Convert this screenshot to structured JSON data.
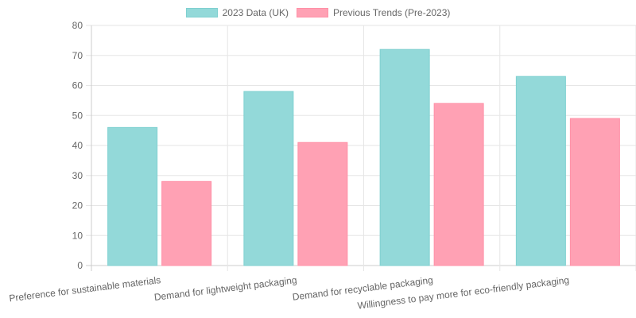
{
  "chart_data": {
    "type": "bar",
    "categories": [
      "Preference for sustainable materials",
      "Demand for lightweight packaging",
      "Demand for recyclable packaging",
      "Willingness to pay more for eco-friendly packaging"
    ],
    "series": [
      {
        "name": "2023 Data (UK)",
        "values": [
          46,
          58,
          72,
          63
        ],
        "color": "#93d9d9",
        "border": "#7fd0d0"
      },
      {
        "name": "Previous Trends (Pre-2023)",
        "values": [
          28,
          41,
          54,
          49
        ],
        "color": "#ffa1b4",
        "border": "#ff91a7"
      }
    ],
    "yticks": [
      0,
      10,
      20,
      30,
      40,
      50,
      60,
      70,
      80
    ],
    "ylim": [
      0,
      80
    ],
    "grid": true,
    "legend_position": "top-center"
  }
}
